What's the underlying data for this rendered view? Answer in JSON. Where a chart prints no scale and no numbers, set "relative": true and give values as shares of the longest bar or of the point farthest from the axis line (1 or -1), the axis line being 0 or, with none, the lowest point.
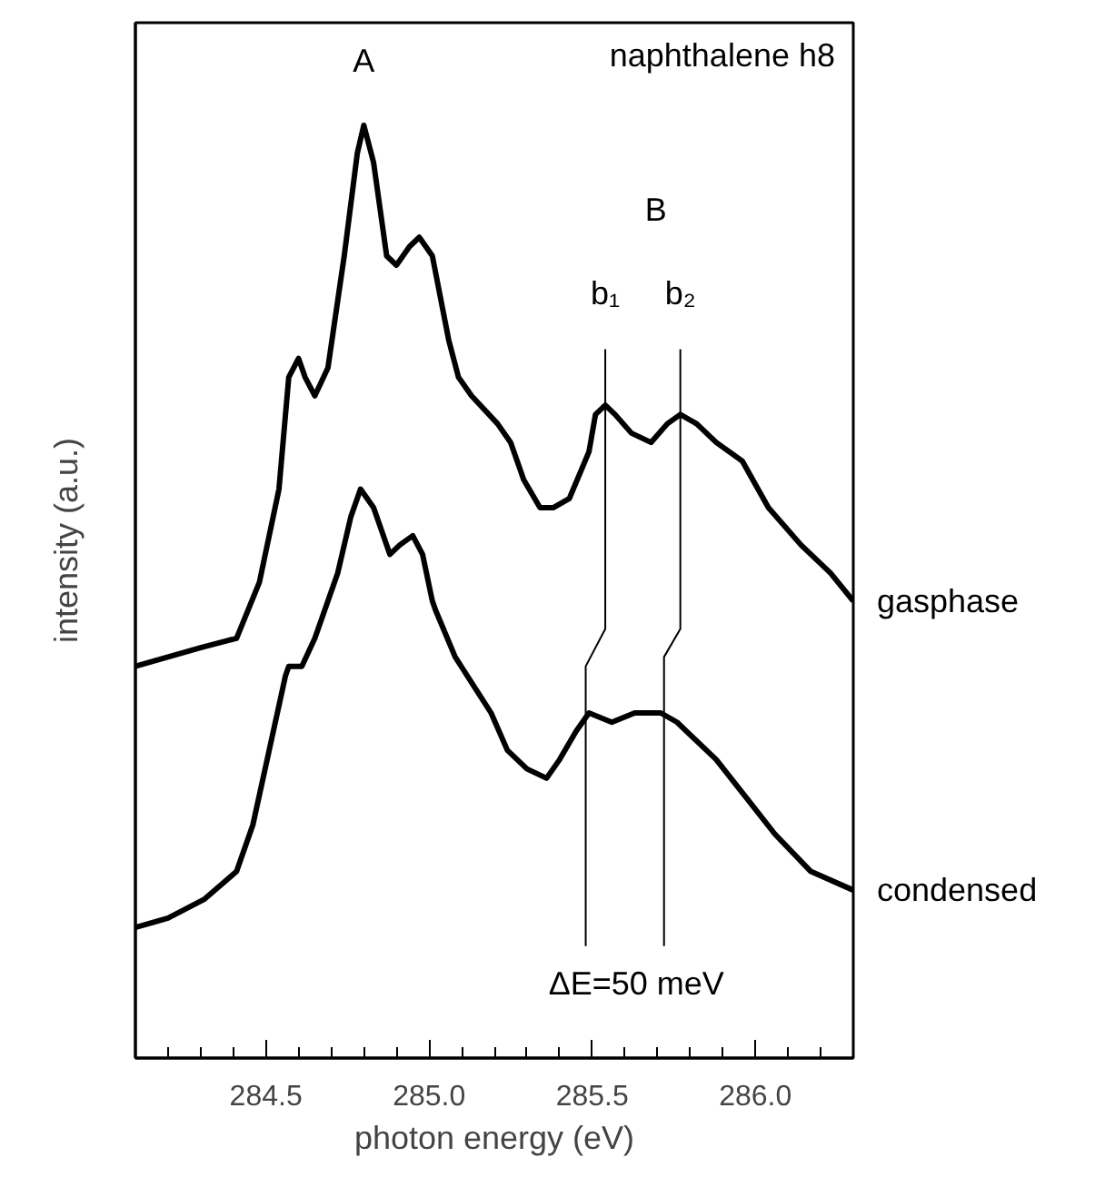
{
  "chart_data": {
    "type": "line",
    "relative": true,
    "xlabel": "photon energy (eV)",
    "ylabel": "intensity (a.u.)",
    "xlim": [
      284.1,
      286.3
    ],
    "xticks": [
      {
        "value": 284.2,
        "label": null
      },
      {
        "value": 284.3,
        "label": null
      },
      {
        "value": 284.4,
        "label": null
      },
      284.5,
      {
        "value": 284.6,
        "label": null
      },
      {
        "value": 284.7,
        "label": null
      },
      {
        "value": 284.8,
        "label": null
      },
      {
        "value": 284.9,
        "label": null
      },
      {
        "value": 285,
        "label": "285.0"
      },
      {
        "value": 285.1,
        "label": null
      },
      {
        "value": 285.2,
        "label": null
      },
      {
        "value": 285.3,
        "label": null
      },
      {
        "value": 285.4,
        "label": null
      },
      285.5,
      {
        "value": 285.6,
        "label": null
      },
      {
        "value": 285.7,
        "label": null
      },
      {
        "value": 285.8,
        "label": null
      },
      {
        "value": 285.9,
        "label": null
      },
      {
        "value": 286,
        "label": "286.0"
      },
      {
        "value": 286.1,
        "label": null
      },
      {
        "value": 286.2,
        "label": null
      }
    ],
    "grid": false,
    "legend": false,
    "marker": "none",
    "line_style": "solid",
    "series": [
      {
        "name": "gasphase",
        "color": "#000000",
        "x": [
          284.1,
          284.3,
          284.41,
          284.48,
          284.54,
          284.57,
          284.6,
          284.62,
          284.65,
          284.69,
          284.74,
          284.78,
          284.8,
          284.83,
          284.87,
          284.9,
          284.94,
          284.97,
          285.01,
          285.06,
          285.09,
          285.13,
          285.21,
          285.25,
          285.29,
          285.34,
          285.38,
          285.43,
          285.49,
          285.51,
          285.54,
          285.57,
          285.62,
          285.68,
          285.73,
          285.77,
          285.82,
          285.88,
          285.96,
          286.04,
          286.14,
          286.23,
          286.3
        ],
        "values": [
          0.42,
          0.44,
          0.45,
          0.51,
          0.61,
          0.73,
          0.75,
          0.73,
          0.71,
          0.74,
          0.86,
          0.97,
          1.0,
          0.96,
          0.86,
          0.85,
          0.87,
          0.88,
          0.86,
          0.77,
          0.73,
          0.71,
          0.68,
          0.66,
          0.62,
          0.59,
          0.59,
          0.6,
          0.65,
          0.69,
          0.7,
          0.69,
          0.67,
          0.66,
          0.68,
          0.69,
          0.68,
          0.66,
          0.64,
          0.59,
          0.55,
          0.52,
          0.49
        ]
      },
      {
        "name": "condensed",
        "color": "#000000",
        "x": [
          284.1,
          284.2,
          284.31,
          284.41,
          284.46,
          284.51,
          284.56,
          284.57,
          284.61,
          284.65,
          284.69,
          284.72,
          284.76,
          284.79,
          284.83,
          284.88,
          284.91,
          284.95,
          284.98,
          285.01,
          285.02,
          285.08,
          285.19,
          285.24,
          285.3,
          285.36,
          285.4,
          285.45,
          285.49,
          285.56,
          285.63,
          285.71,
          285.76,
          285.88,
          285.97,
          286.06,
          286.17,
          286.3
        ],
        "values": [
          0.14,
          0.15,
          0.17,
          0.2,
          0.25,
          0.33,
          0.41,
          0.42,
          0.42,
          0.45,
          0.49,
          0.52,
          0.58,
          0.61,
          0.59,
          0.54,
          0.55,
          0.56,
          0.54,
          0.49,
          0.48,
          0.43,
          0.37,
          0.33,
          0.31,
          0.3,
          0.32,
          0.35,
          0.37,
          0.36,
          0.37,
          0.37,
          0.36,
          0.32,
          0.28,
          0.24,
          0.2,
          0.18
        ]
      },
      {
        "color": "#000000",
        "x": [
          285.54,
          285.54,
          285.48,
          285.48
        ],
        "values": [
          0.76,
          0.46,
          0.42,
          0.12
        ]
      },
      {
        "color": "#000000",
        "x": [
          285.77,
          285.77,
          285.72,
          285.72
        ],
        "values": [
          0.76,
          0.46,
          0.43,
          0.12
        ]
      }
    ],
    "annotations": [
      "naphthalene h8",
      "A",
      "B",
      "b₁",
      "b₂",
      "ΔE=50 meV"
    ]
  }
}
